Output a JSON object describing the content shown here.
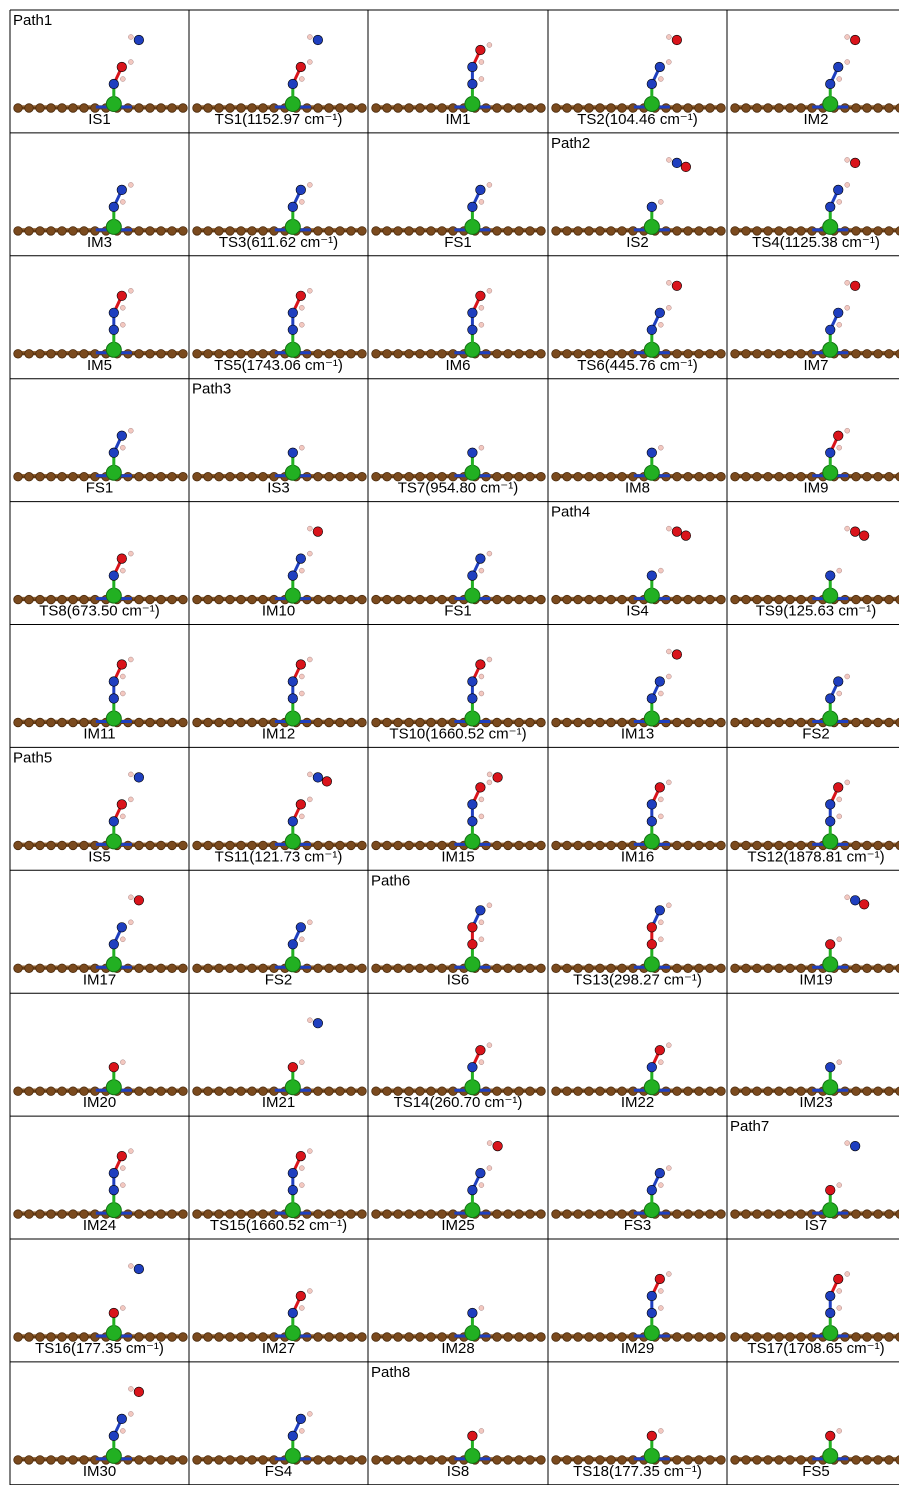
{
  "grid": {
    "rows": [
      [
        {
          "label": "IS1",
          "path": "Path1"
        },
        {
          "label": "TS1(1152.97 cm⁻¹)"
        },
        {
          "label": "IM1"
        },
        {
          "label": "TS2(104.46 cm⁻¹)"
        },
        {
          "label": "IM2"
        }
      ],
      [
        {
          "label": "IM3"
        },
        {
          "label": "TS3(611.62 cm⁻¹)"
        },
        {
          "label": "FS1"
        },
        {
          "label": "IS2",
          "path": "Path2"
        },
        {
          "label": "TS4(1125.38 cm⁻¹)"
        }
      ],
      [
        {
          "label": "IM5"
        },
        {
          "label": "TS5(1743.06 cm⁻¹)"
        },
        {
          "label": "IM6"
        },
        {
          "label": "TS6(445.76 cm⁻¹)"
        },
        {
          "label": "IM7"
        }
      ],
      [
        {
          "label": "FS1"
        },
        {
          "label": "IS3",
          "path": "Path3"
        },
        {
          "label": "TS7(954.80 cm⁻¹)"
        },
        {
          "label": "IM8"
        },
        {
          "label": "IM9"
        }
      ],
      [
        {
          "label": "TS8(673.50 cm⁻¹)"
        },
        {
          "label": "IM10"
        },
        {
          "label": "FS1"
        },
        {
          "label": "IS4",
          "path": "Path4"
        },
        {
          "label": "TS9(125.63 cm⁻¹)"
        }
      ],
      [
        {
          "label": "IM11"
        },
        {
          "label": "IM12"
        },
        {
          "label": "TS10(1660.52 cm⁻¹)"
        },
        {
          "label": "IM13"
        },
        {
          "label": "FS2"
        }
      ],
      [
        {
          "label": "IS5",
          "path": "Path5"
        },
        {
          "label": "TS11(121.73 cm⁻¹)"
        },
        {
          "label": "IM15"
        },
        {
          "label": "IM16"
        },
        {
          "label": "TS12(1878.81 cm⁻¹)"
        }
      ],
      [
        {
          "label": "IM17"
        },
        {
          "label": "FS2"
        },
        {
          "label": "IS6",
          "path": "Path6"
        },
        {
          "label": "TS13(298.27 cm⁻¹)"
        },
        {
          "label": "IM19"
        }
      ],
      [
        {
          "label": "IM20"
        },
        {
          "label": "IM21"
        },
        {
          "label": "TS14(260.70 cm⁻¹)"
        },
        {
          "label": "IM22"
        },
        {
          "label": "IM23"
        }
      ],
      [
        {
          "label": "IM24"
        },
        {
          "label": "TS15(1660.52 cm⁻¹)"
        },
        {
          "label": "IM25"
        },
        {
          "label": "FS3"
        },
        {
          "label": "IS7",
          "path": "Path7"
        }
      ],
      [
        {
          "label": "TS16(177.35 cm⁻¹)"
        },
        {
          "label": "IM27"
        },
        {
          "label": "IM28"
        },
        {
          "label": "IM29"
        },
        {
          "label": "TS17(1708.65 cm⁻¹)"
        }
      ],
      [
        {
          "label": "IM30"
        },
        {
          "label": "FS4"
        },
        {
          "label": "IS8",
          "path": "Path8"
        },
        {
          "label": "TS18(177.35 cm⁻¹)"
        },
        {
          "label": "FS5"
        }
      ]
    ]
  }
}
